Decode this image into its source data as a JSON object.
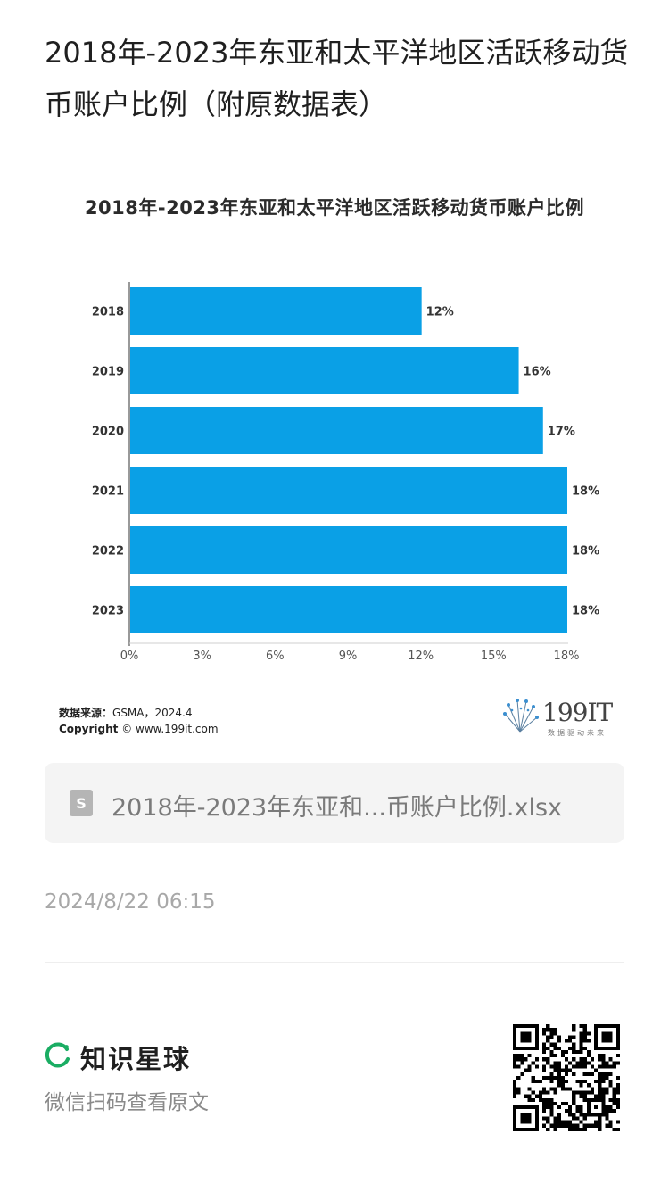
{
  "post": {
    "title": "2018年-2023年东亚和太平洋地区活跃移动货币账户比例（附原数据表）"
  },
  "chart_data": {
    "type": "bar",
    "orientation": "horizontal",
    "title": "2018年-2023年东亚和太平洋地区活跃移动货币账户比例",
    "categories": [
      "2018",
      "2019",
      "2020",
      "2021",
      "2022",
      "2023"
    ],
    "values": [
      12,
      16,
      17,
      18,
      18,
      18
    ],
    "data_labels": [
      "12%",
      "16%",
      "17%",
      "18%",
      "18%",
      "18%"
    ],
    "x_ticks": [
      "0%",
      "3%",
      "6%",
      "9%",
      "12%",
      "15%",
      "18%"
    ],
    "xlim": [
      0,
      18
    ],
    "xlabel": "",
    "ylabel": "",
    "grid": false,
    "bar_color": "#0aa0e6"
  },
  "source": {
    "label": "数据来源：",
    "value": "GSMA，2024.4",
    "copyright_label": "Copyright",
    "copyright_value": "© www.199it.com"
  },
  "logo": {
    "text": "199IT",
    "tagline": "数据驱动未来"
  },
  "attachment": {
    "icon": "spreadsheet-file-icon",
    "icon_letter": "S",
    "name": "2018年-2023年东亚和...币账户比例.xlsx"
  },
  "timestamp": "2024/8/22 06:15",
  "footer": {
    "brand_name": "知识星球",
    "scan_hint": "微信扫码查看原文",
    "brand_color": "#1aad63"
  }
}
